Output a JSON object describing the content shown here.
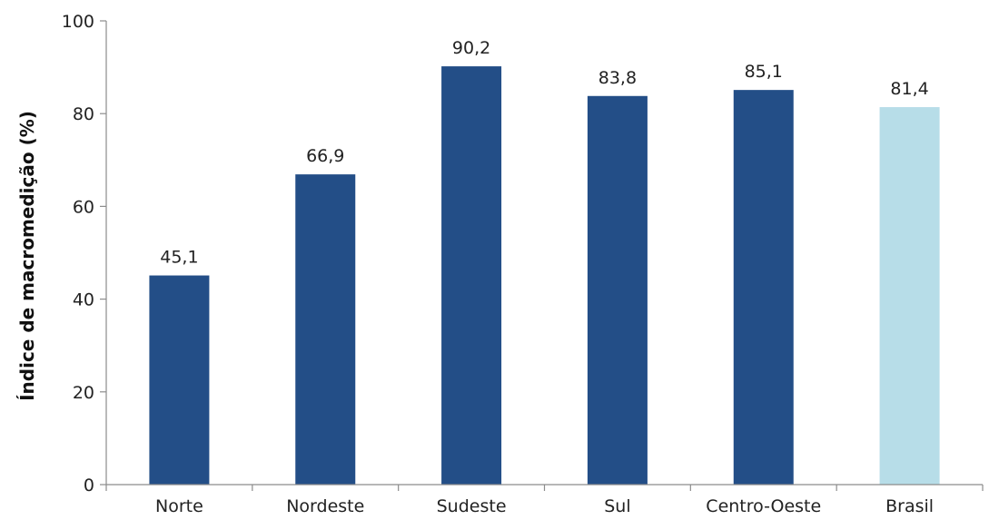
{
  "chart_data": {
    "type": "bar",
    "title": "",
    "xlabel": "",
    "ylabel": "Índice de macromedição (%)",
    "categories": [
      "Norte",
      "Nordeste",
      "Sudeste",
      "Sul",
      "Centro-Oeste",
      "Brasil"
    ],
    "values": [
      45.1,
      66.9,
      90.2,
      83.8,
      85.1,
      81.4
    ],
    "data_labels": [
      "45,1",
      "66,9",
      "90,2",
      "83,8",
      "85,1",
      "81,4"
    ],
    "bar_colors": [
      "#234e87",
      "#234e87",
      "#234e87",
      "#234e87",
      "#234e87",
      "#b7dde8"
    ],
    "ylim": [
      0,
      100
    ],
    "yticks": [
      0,
      20,
      40,
      60,
      80,
      100
    ],
    "ytick_labels": [
      "0",
      "20",
      "40",
      "60",
      "80",
      "100"
    ],
    "grid": false,
    "legend": "none"
  }
}
